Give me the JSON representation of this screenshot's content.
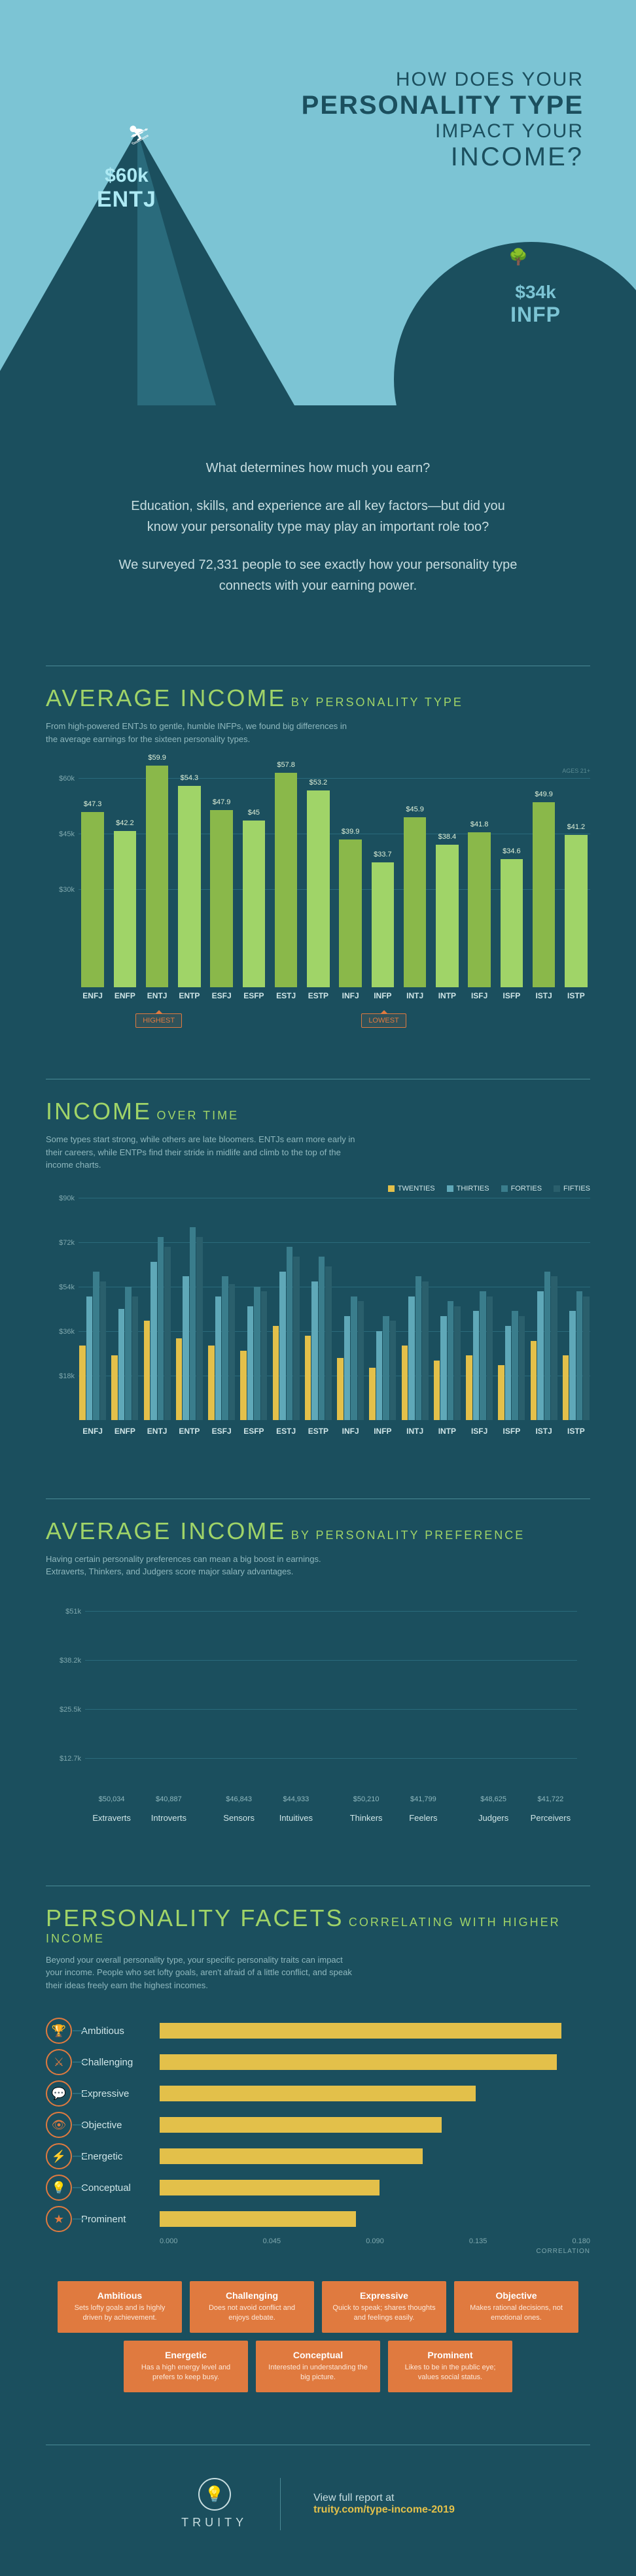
{
  "hero": {
    "line1": "HOW DOES YOUR",
    "line2": "PERSONALITY TYPE",
    "line3": "IMPACT YOUR",
    "line4": "INCOME?",
    "high_amount": "$60k",
    "high_type": "ENTJ",
    "low_amount": "$34k",
    "low_type": "INFP"
  },
  "intro": {
    "p1": "What determines how much you earn?",
    "p2": "Education, skills, and experience are all key factors—but did you know your personality type may play an important role too?",
    "p3": "We surveyed 72,331 people to see exactly how your personality type connects with your earning power."
  },
  "section1": {
    "title_big": "AVERAGE INCOME",
    "title_sub": "BY PERSONALITY TYPE",
    "desc": "From high-powered ENTJs to gentle, humble INFPs, we found big differences in the average earnings for the sixteen personality types.",
    "axis_note": "AGES 21+",
    "ylim": 60,
    "yticks": [
      "$60k",
      "$45k",
      "$30k"
    ],
    "bars": [
      {
        "l": "ENFJ",
        "v": 47.3,
        "c": "#8ab84a",
        "txt": "$47.3"
      },
      {
        "l": "ENFP",
        "v": 42.2,
        "c": "#a0d468",
        "txt": "$42.2"
      },
      {
        "l": "ENTJ",
        "v": 59.9,
        "c": "#8ab84a",
        "txt": "$59.9"
      },
      {
        "l": "ENTP",
        "v": 54.3,
        "c": "#a0d468",
        "txt": "$54.3"
      },
      {
        "l": "ESFJ",
        "v": 47.9,
        "c": "#8ab84a",
        "txt": "$47.9"
      },
      {
        "l": "ESFP",
        "v": 45.0,
        "c": "#a0d468",
        "txt": "$45"
      },
      {
        "l": "ESTJ",
        "v": 57.8,
        "c": "#8ab84a",
        "txt": "$57.8"
      },
      {
        "l": "ESTP",
        "v": 53.2,
        "c": "#a0d468",
        "txt": "$53.2"
      },
      {
        "l": "INFJ",
        "v": 39.9,
        "c": "#8ab84a",
        "txt": "$39.9"
      },
      {
        "l": "INFP",
        "v": 33.7,
        "c": "#a0d468",
        "txt": "$33.7"
      },
      {
        "l": "INTJ",
        "v": 45.9,
        "c": "#8ab84a",
        "txt": "$45.9"
      },
      {
        "l": "INTP",
        "v": 38.4,
        "c": "#a0d468",
        "txt": "$38.4"
      },
      {
        "l": "ISFJ",
        "v": 41.8,
        "c": "#8ab84a",
        "txt": "$41.8"
      },
      {
        "l": "ISFP",
        "v": 34.6,
        "c": "#a0d468",
        "txt": "$34.6"
      },
      {
        "l": "ISTJ",
        "v": 49.9,
        "c": "#8ab84a",
        "txt": "$49.9"
      },
      {
        "l": "ISTP",
        "v": 41.2,
        "c": "#a0d468",
        "txt": "$41.2"
      }
    ],
    "highest": "HIGHEST",
    "lowest": "LOWEST"
  },
  "section2": {
    "title_big": "INCOME",
    "title_sub": "OVER TIME",
    "desc": "Some types start strong, while others are late bloomers. ENTJs earn more early in their careers, while ENTPs find their stride in midlife and climb to the top of the income charts.",
    "legend": [
      "TWENTIES",
      "THIRTIES",
      "FORTIES",
      "FIFTIES"
    ],
    "ylim": 90,
    "yticks": [
      "$90k",
      "$72k",
      "$54k",
      "$36k",
      "$18k"
    ],
    "colors": [
      "#e3c04a",
      "#5fa8b8",
      "#3a7d8c",
      "#2a5f6c"
    ],
    "types": [
      "ENFJ",
      "ENFP",
      "ENTJ",
      "ENTP",
      "ESFJ",
      "ESFP",
      "ESTJ",
      "ESTP",
      "INFJ",
      "INFP",
      "INTJ",
      "INTP",
      "ISFJ",
      "ISFP",
      "ISTJ",
      "ISTP"
    ],
    "data": [
      [
        30,
        50,
        60,
        56
      ],
      [
        26,
        45,
        54,
        50
      ],
      [
        40,
        64,
        74,
        70
      ],
      [
        33,
        58,
        78,
        74
      ],
      [
        30,
        50,
        58,
        55
      ],
      [
        28,
        46,
        54,
        52
      ],
      [
        38,
        60,
        70,
        66
      ],
      [
        34,
        56,
        66,
        62
      ],
      [
        25,
        42,
        50,
        48
      ],
      [
        21,
        36,
        42,
        40
      ],
      [
        30,
        50,
        58,
        56
      ],
      [
        24,
        42,
        48,
        46
      ],
      [
        26,
        44,
        52,
        50
      ],
      [
        22,
        38,
        44,
        42
      ],
      [
        32,
        52,
        60,
        58
      ],
      [
        26,
        44,
        52,
        50
      ]
    ]
  },
  "section3": {
    "title_big": "AVERAGE INCOME",
    "title_sub": "BY PERSONALITY PREFERENCE",
    "desc": "Having certain personality preferences can mean a big boost in earnings. Extraverts, Thinkers, and Judgers score major salary advantages.",
    "ylim": 51000,
    "yticks": [
      "$51k",
      "$38.2k",
      "$25.5k",
      "$12.7k"
    ],
    "colors": [
      "#6b5b9a",
      "#8a7bb8"
    ],
    "pairs": [
      {
        "a": {
          "l": "Extraverts",
          "v": 50034,
          "t": "$50,034"
        },
        "b": {
          "l": "Introverts",
          "v": 40887,
          "t": "$40,887"
        }
      },
      {
        "a": {
          "l": "Sensors",
          "v": 46843,
          "t": "$46,843"
        },
        "b": {
          "l": "Intuitives",
          "v": 44933,
          "t": "$44,933"
        }
      },
      {
        "a": {
          "l": "Thinkers",
          "v": 50210,
          "t": "$50,210"
        },
        "b": {
          "l": "Feelers",
          "v": 41799,
          "t": "$41,799"
        }
      },
      {
        "a": {
          "l": "Judgers",
          "v": 48625,
          "t": "$48,625"
        },
        "b": {
          "l": "Perceivers",
          "v": 41722,
          "t": "$41,722"
        }
      }
    ]
  },
  "section4": {
    "title_big": "PERSONALITY FACETS",
    "title_sub": "CORRELATING WITH HIGHER INCOME",
    "desc": "Beyond your overall personality type, your specific personality traits can impact your income. People who set lofty goals, aren't afraid of a little conflict, and speak their ideas freely earn the highest incomes.",
    "xticks": [
      "0.000",
      "0.045",
      "0.090",
      "0.135",
      "0.180"
    ],
    "xaxis_label": "CORRELATION",
    "max": 0.18,
    "facets": [
      {
        "icon": "🏆",
        "l": "Ambitious",
        "v": 0.168
      },
      {
        "icon": "⚔",
        "l": "Challenging",
        "v": 0.166
      },
      {
        "icon": "💬",
        "l": "Expressive",
        "v": 0.132
      },
      {
        "icon": "👁",
        "l": "Objective",
        "v": 0.118
      },
      {
        "icon": "⚡",
        "l": "Energetic",
        "v": 0.11
      },
      {
        "icon": "💡",
        "l": "Conceptual",
        "v": 0.092
      },
      {
        "icon": "★",
        "l": "Prominent",
        "v": 0.082
      }
    ],
    "cards": [
      {
        "t": "Ambitious",
        "d": "Sets lofty goals and is highly driven by achievement."
      },
      {
        "t": "Challenging",
        "d": "Does not avoid conflict and enjoys debate."
      },
      {
        "t": "Expressive",
        "d": "Quick to speak; shares thoughts and feelings easily."
      },
      {
        "t": "Objective",
        "d": "Makes rational decisions, not emotional ones."
      },
      {
        "t": "Energetic",
        "d": "Has a high energy level and prefers to keep busy."
      },
      {
        "t": "Conceptual",
        "d": "Interested in understanding the big picture."
      },
      {
        "t": "Prominent",
        "d": "Likes to be in the public eye; values social status."
      }
    ]
  },
  "footer": {
    "brand": "TRUITY",
    "l1": "View full report at",
    "l2": "truity.com/type-income-2019"
  }
}
